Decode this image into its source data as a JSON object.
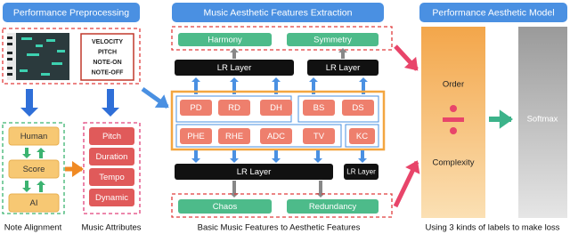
{
  "header": {
    "preprocessing": "Performance Preprocessing",
    "extraction": "Music Aesthetic Features Extraction",
    "model": "Performance Aesthetic Model"
  },
  "attributes_box": [
    "VELOCITY",
    "PITCH",
    "NOTE-ON",
    "NOTE-OFF"
  ],
  "alignment": [
    "Human",
    "Score",
    "AI"
  ],
  "music_attributes": [
    "Pitch",
    "Duration",
    "Tempo",
    "Dynamic"
  ],
  "captions": [
    "Note Alignment",
    "Music Attributes",
    "Basic Music Features to Aesthetic Features",
    "Using 3 kinds of labels to make loss"
  ],
  "aesthetic_top": [
    "Harmony",
    "Symmetry"
  ],
  "lr_layers": [
    "LR Layer",
    "LR Layer",
    "LR Layer",
    "LR Layer"
  ],
  "features": [
    "PD",
    "RD",
    "DH",
    "BS",
    "DS",
    "PHE",
    "RHE",
    "ADC",
    "TV",
    "KC"
  ],
  "aesthetic_bottom": [
    "Chaos",
    "Redundancy"
  ],
  "model": {
    "order": "Order",
    "complexity": "Complexity",
    "softmax": "Softmax"
  }
}
